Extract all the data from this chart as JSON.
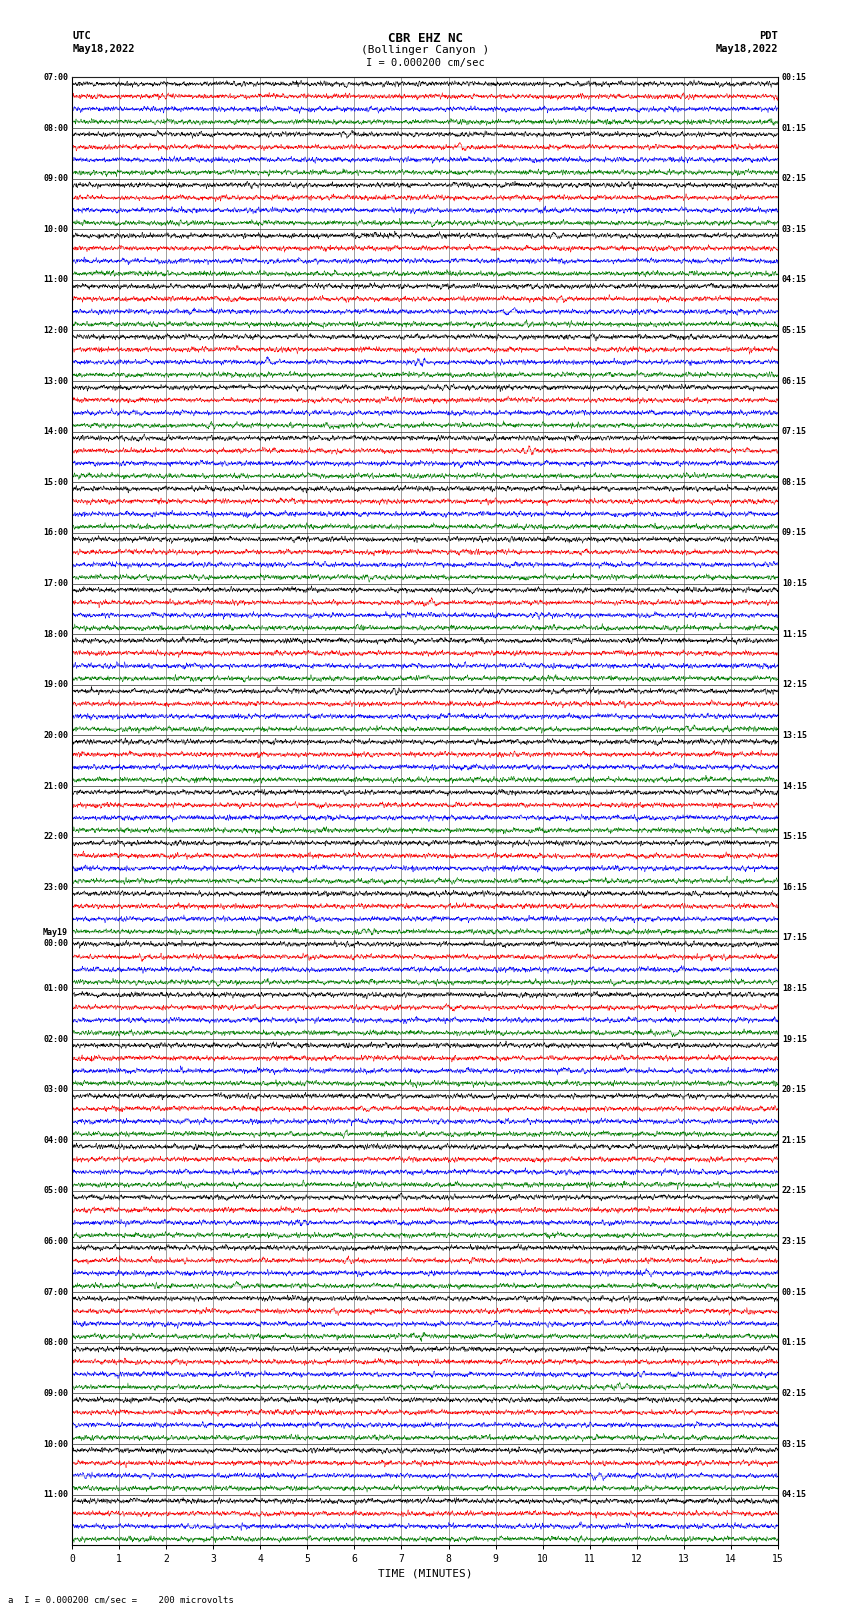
{
  "title_line1": "CBR EHZ NC",
  "title_line2": "(Bollinger Canyon )",
  "scale_label": "I = 0.000200 cm/sec",
  "utc_label": "UTC",
  "utc_date": "May18,2022",
  "pdt_label": "PDT",
  "pdt_date": "May18,2022",
  "bottom_label": "a  I = 0.000200 cm/sec =    200 microvolts",
  "xlabel": "TIME (MINUTES)",
  "xlim": [
    0,
    15
  ],
  "xticks": [
    0,
    1,
    2,
    3,
    4,
    5,
    6,
    7,
    8,
    9,
    10,
    11,
    12,
    13,
    14,
    15
  ],
  "num_rows": 29,
  "traces_per_row": 4,
  "trace_colors": [
    "black",
    "red",
    "blue",
    "green"
  ],
  "utc_times": [
    "07:00",
    "08:00",
    "09:00",
    "10:00",
    "11:00",
    "12:00",
    "13:00",
    "14:00",
    "15:00",
    "16:00",
    "17:00",
    "18:00",
    "19:00",
    "20:00",
    "21:00",
    "22:00",
    "23:00",
    "May19\n00:00",
    "01:00",
    "02:00",
    "03:00",
    "04:00",
    "05:00",
    "06:00",
    "07:00",
    "08:00",
    "09:00",
    "10:00",
    "11:00"
  ],
  "pdt_times": [
    "00:15",
    "01:15",
    "02:15",
    "03:15",
    "04:15",
    "05:15",
    "06:15",
    "07:15",
    "08:15",
    "09:15",
    "10:15",
    "11:15",
    "12:15",
    "13:15",
    "14:15",
    "15:15",
    "16:15",
    "17:15",
    "18:15",
    "19:15",
    "20:15",
    "21:15",
    "22:15",
    "23:15",
    "00:15",
    "01:15",
    "02:15",
    "03:15",
    "04:15"
  ],
  "background_color": "white",
  "grid_color": "#777777",
  "fig_width": 8.5,
  "fig_height": 16.13,
  "dpi": 100
}
